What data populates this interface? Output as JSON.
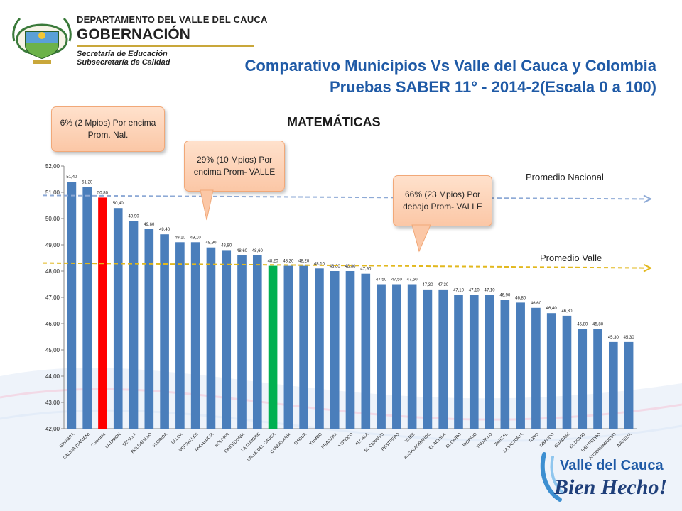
{
  "header": {
    "org_line1": "DEPARTAMENTO DEL VALLE DEL CAUCA",
    "org_line2": "GOBERNACIÓN",
    "org_line3": "Secretaría de Educación",
    "org_line4": "Subsecretaría de Calidad",
    "title_line1": "Comparativo Municipios Vs Valle del Cauca y Colombia",
    "title_line2": "Pruebas SABER 11° - 2014-2(Escala 0 a 100)"
  },
  "callouts": [
    {
      "text": "6% (2 Mpios) Por encima Prom. Nal."
    },
    {
      "text": "29% (10 Mpios) Por encima Prom- VALLE"
    },
    {
      "text": "66% (23 Mpios) Por debajo Prom- VALLE"
    }
  ],
  "footer": {
    "logo_line1": "Valle del Cauca",
    "logo_line2": "Bien Hecho!"
  },
  "colors": {
    "title": "#1f5aa6",
    "bar": "#4a7ebb",
    "colombia": "#ff0000",
    "valle": "#00b050",
    "callout": "#fbc7a6"
  },
  "chart_data": {
    "type": "bar",
    "title": "MATEMÁTICAS",
    "ylim": [
      42,
      52
    ],
    "yticks": [
      "42,00",
      "43,00",
      "44,00",
      "45,00",
      "46,00",
      "47,00",
      "48,00",
      "49,00",
      "50,00",
      "51,00",
      "52,00"
    ],
    "grid": false,
    "categories": [
      "GINEBRA",
      "CALIMA (DARIEN)",
      "Colombia",
      "LA UNION",
      "SEVILLA",
      "ROLDANILLO",
      "FLORIDA",
      "ULLOA",
      "VERSALLES",
      "ANDALUCIA",
      "BOLIVAR",
      "CAICEDONIA",
      "LA CUMBRE",
      "VALLE DEL CAUCA",
      "CANDELARIA",
      "DAGUA",
      "YUMBO",
      "PRADERA",
      "YOTOCO",
      "ALCALA",
      "EL CERRITO",
      "RESTREPO",
      "VIJES",
      "BUGALAGRANDE",
      "EL AGUILA",
      "EL CAIRO",
      "RIOFRIO",
      "TRUJILLO",
      "ZARZAL",
      "LA VICTORIA",
      "TORO",
      "OBANDO",
      "GUACARI",
      "EL DOVIO",
      "SAN PEDRO",
      "ANSERMANUEVO",
      "ARGELIA"
    ],
    "values": [
      51.4,
      51.2,
      50.8,
      50.4,
      49.9,
      49.6,
      49.4,
      49.1,
      49.1,
      48.9,
      48.8,
      48.6,
      48.6,
      48.2,
      48.2,
      48.2,
      48.1,
      48.0,
      48.0,
      47.9,
      47.5,
      47.5,
      47.5,
      47.3,
      47.3,
      47.1,
      47.1,
      47.1,
      46.9,
      46.8,
      46.6,
      46.4,
      46.3,
      45.8,
      45.8,
      45.3,
      45.3
    ],
    "data_labels": [
      "51,40",
      "51,20",
      "50,80",
      "50,40",
      "49,90",
      "49,60",
      "49,40",
      "49,10",
      "49,10",
      "48,90",
      "48,80",
      "48,60",
      "48,60",
      "48,20",
      "48,20",
      "48,20",
      "48,10",
      "48,00",
      "48,00",
      "47,90",
      "47,50",
      "47,50",
      "47,50",
      "47,30",
      "47,30",
      "47,10",
      "47,10",
      "47,10",
      "46,90",
      "46,80",
      "46,60",
      "46,40",
      "46,30",
      "45,80",
      "45,80",
      "45,30",
      "45,30"
    ],
    "highlight": {
      "Colombia": "#ff0000",
      "VALLE DEL CAUCA": "#00b050"
    },
    "reference_lines": [
      {
        "name": "Promedio Nacional",
        "value": 50.8
      },
      {
        "name": "Promedio Valle",
        "value": 48.2
      }
    ]
  }
}
